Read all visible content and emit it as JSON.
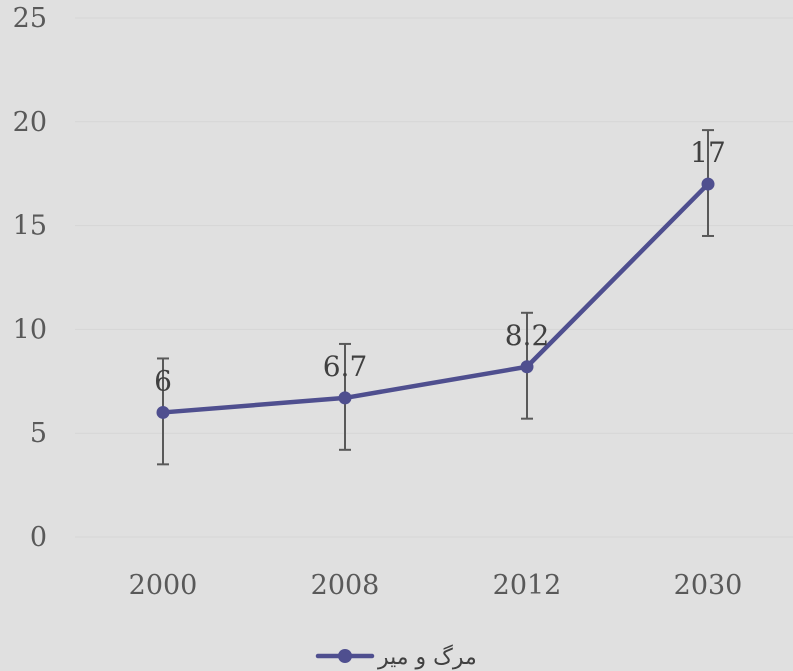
{
  "chart_data": {
    "type": "line",
    "title": "",
    "xlabel": "",
    "ylabel": "",
    "categories": [
      "2000",
      "2008",
      "2012",
      "2030"
    ],
    "series": [
      {
        "name": "مرگ و میر",
        "values": [
          6,
          6.7,
          8.2,
          17
        ],
        "data_labels": [
          "6",
          "6.7",
          "8.2",
          "17"
        ],
        "error_bars": {
          "plus": [
            2.6,
            2.6,
            2.6,
            2.6
          ],
          "minus": [
            2.5,
            2.5,
            2.5,
            2.5
          ]
        },
        "color": "#4f4f8f"
      }
    ],
    "ylim": [
      0,
      25
    ],
    "yticks": [
      "0",
      "5",
      "10",
      "15",
      "20",
      "25"
    ],
    "grid": true,
    "legend": "bottom",
    "colors": {
      "background": "#e0e0e0",
      "grid": "#d6d6d6",
      "error_bar": "#595959"
    }
  }
}
